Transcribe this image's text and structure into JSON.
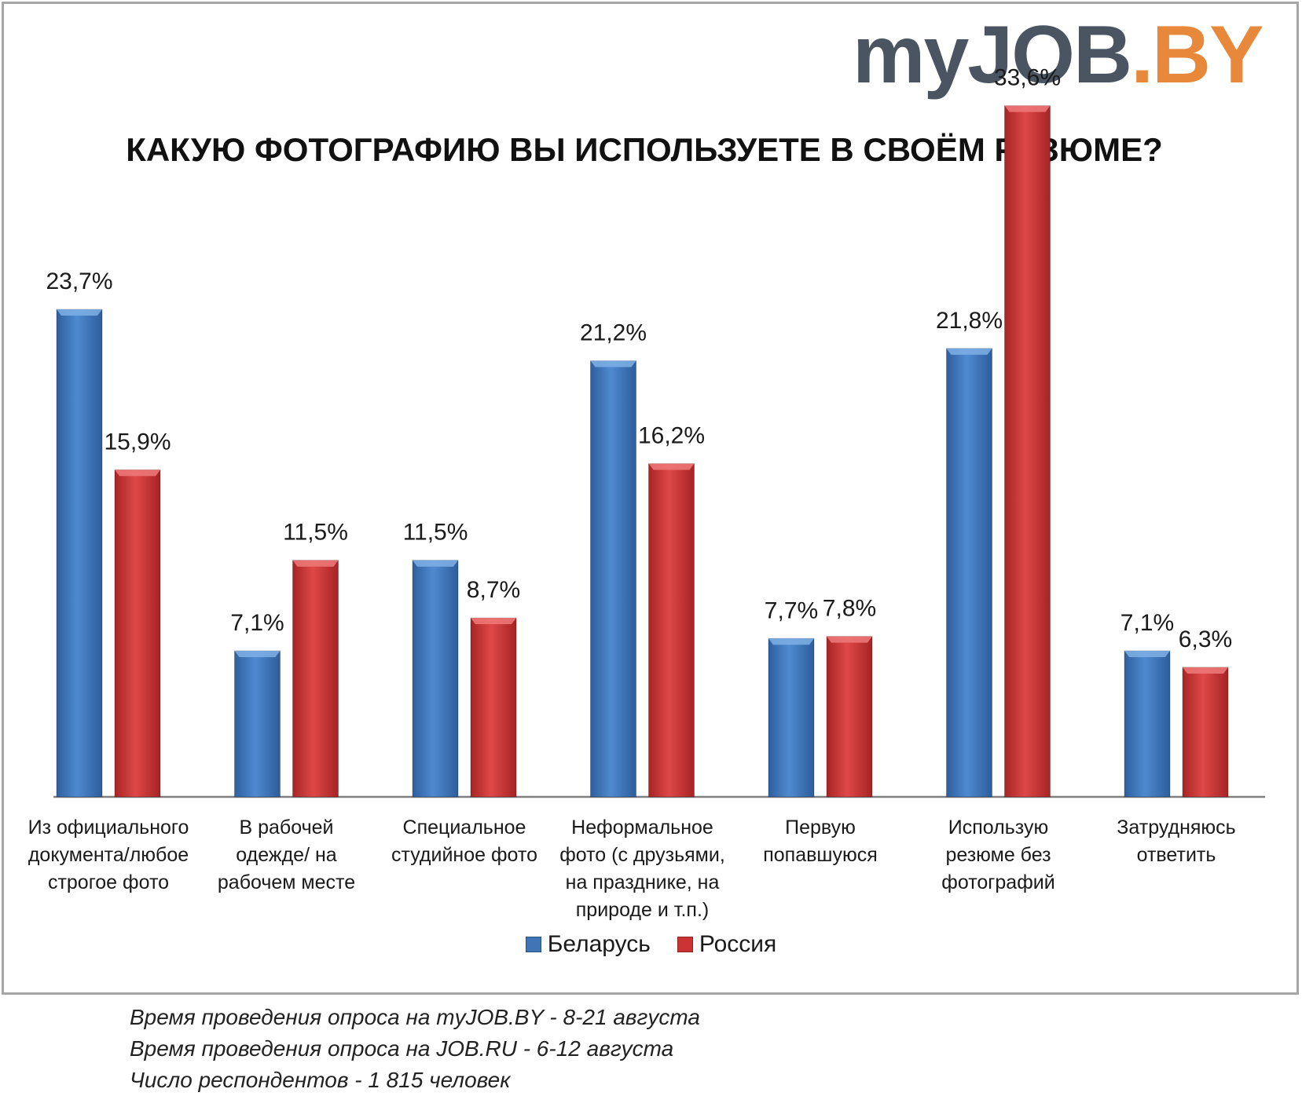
{
  "logo": {
    "main": "myJOB",
    "accent": ".BY"
  },
  "colors": {
    "belarus": "#3f74b6",
    "russia": "#cc3434",
    "axis": "#808080"
  },
  "chart_data": {
    "type": "bar",
    "title": "КАКУЮ ФОТОГРАФИЮ ВЫ ИСПОЛЬЗУЕТЕ В СВОЁМ РЕЗЮМЕ?",
    "xlabel": "",
    "ylabel": "",
    "ylim": [
      0,
      36
    ],
    "grid": false,
    "legend": "bottom",
    "categories": [
      [
        "Из официального",
        "документа/любое",
        "строгое фото"
      ],
      [
        "В рабочей",
        "одежде/ на",
        "рабочем месте"
      ],
      [
        "Специальное",
        "студийное фото"
      ],
      [
        "Неформальное",
        "фото (с друзьями,",
        "на празднике, на",
        "природе и т.п.)"
      ],
      [
        "Первую",
        "попавшуюся"
      ],
      [
        "Использую",
        "резюме без",
        "фотографий"
      ],
      [
        "Затрудняюсь",
        "ответить"
      ]
    ],
    "series": [
      {
        "name": "Беларусь",
        "values": [
          23.7,
          7.1,
          11.5,
          21.2,
          7.7,
          21.8,
          7.1
        ],
        "labels": [
          "23,7%",
          "7,1%",
          "11,5%",
          "21,2%",
          "7,7%",
          "21,8%",
          "7,1%"
        ]
      },
      {
        "name": "Россия",
        "values": [
          15.9,
          11.5,
          8.7,
          16.2,
          7.8,
          33.6,
          6.3
        ],
        "labels": [
          "15,9%",
          "11,5%",
          "8,7%",
          "16,2%",
          "7,8%",
          "33,6%",
          "6,3%"
        ]
      }
    ]
  },
  "notes": [
    "Время проведения опроса на myJOB.BY - 8-21 августа",
    "Время проведения опроса на JOB.RU - 6-12 августа",
    "Число респондентов - 1 815 человек"
  ]
}
